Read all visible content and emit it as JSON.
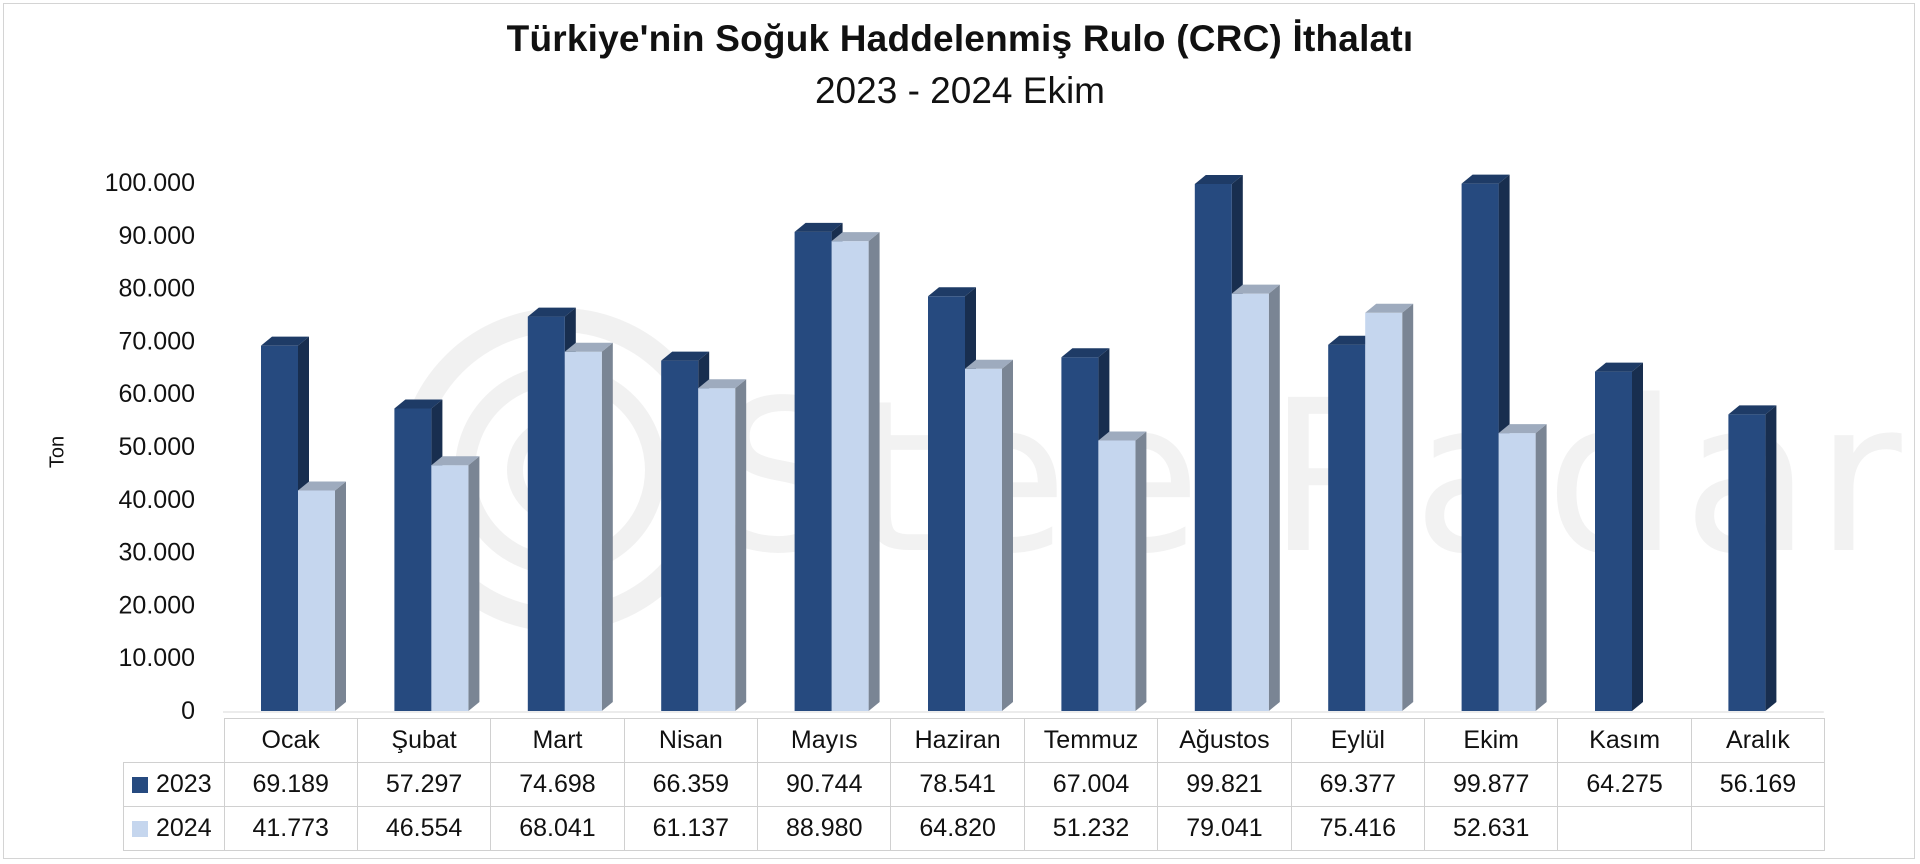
{
  "title": "Türkiye'nin Soğuk Haddelenmiş Rulo (CRC) İthalatı",
  "subtitle": "2023 - 2024 Ekim",
  "watermark": "SteelRadar",
  "colors": {
    "series_2023": "#264a7f",
    "series_2024": "#c5d6ee"
  },
  "chart_data": {
    "type": "bar",
    "title": "Türkiye'nin Soğuk Haddelenmiş Rulo (CRC) İthalatı",
    "subtitle": "2023 - 2024 Ekim",
    "xlabel": "",
    "ylabel": "Ton",
    "ylim": [
      0,
      100000
    ],
    "yticks": [
      "0",
      "10.000",
      "20.000",
      "30.000",
      "40.000",
      "50.000",
      "60.000",
      "70.000",
      "80.000",
      "90.000",
      "100.000"
    ],
    "grid": false,
    "legend": "data-table",
    "categories": [
      "Ocak",
      "Şubat",
      "Mart",
      "Nisan",
      "Mayıs",
      "Haziran",
      "Temmuz",
      "Ağustos",
      "Eylül",
      "Ekim",
      "Kasım",
      "Aralık"
    ],
    "series": [
      {
        "name": "2023",
        "values": [
          69189,
          57297,
          74698,
          66359,
          90744,
          78541,
          67004,
          99821,
          69377,
          99877,
          64275,
          56169
        ],
        "labels": [
          "69.189",
          "57.297",
          "74.698",
          "66.359",
          "90.744",
          "78.541",
          "67.004",
          "99.821",
          "69.377",
          "99.877",
          "64.275",
          "56.169"
        ]
      },
      {
        "name": "2024",
        "values": [
          41773,
          46554,
          68041,
          61137,
          88980,
          64820,
          51232,
          79041,
          75416,
          52631,
          null,
          null
        ],
        "labels": [
          "41.773",
          "46.554",
          "68.041",
          "61.137",
          "88.980",
          "64.820",
          "51.232",
          "79.041",
          "75.416",
          "52.631",
          "",
          ""
        ]
      }
    ]
  }
}
